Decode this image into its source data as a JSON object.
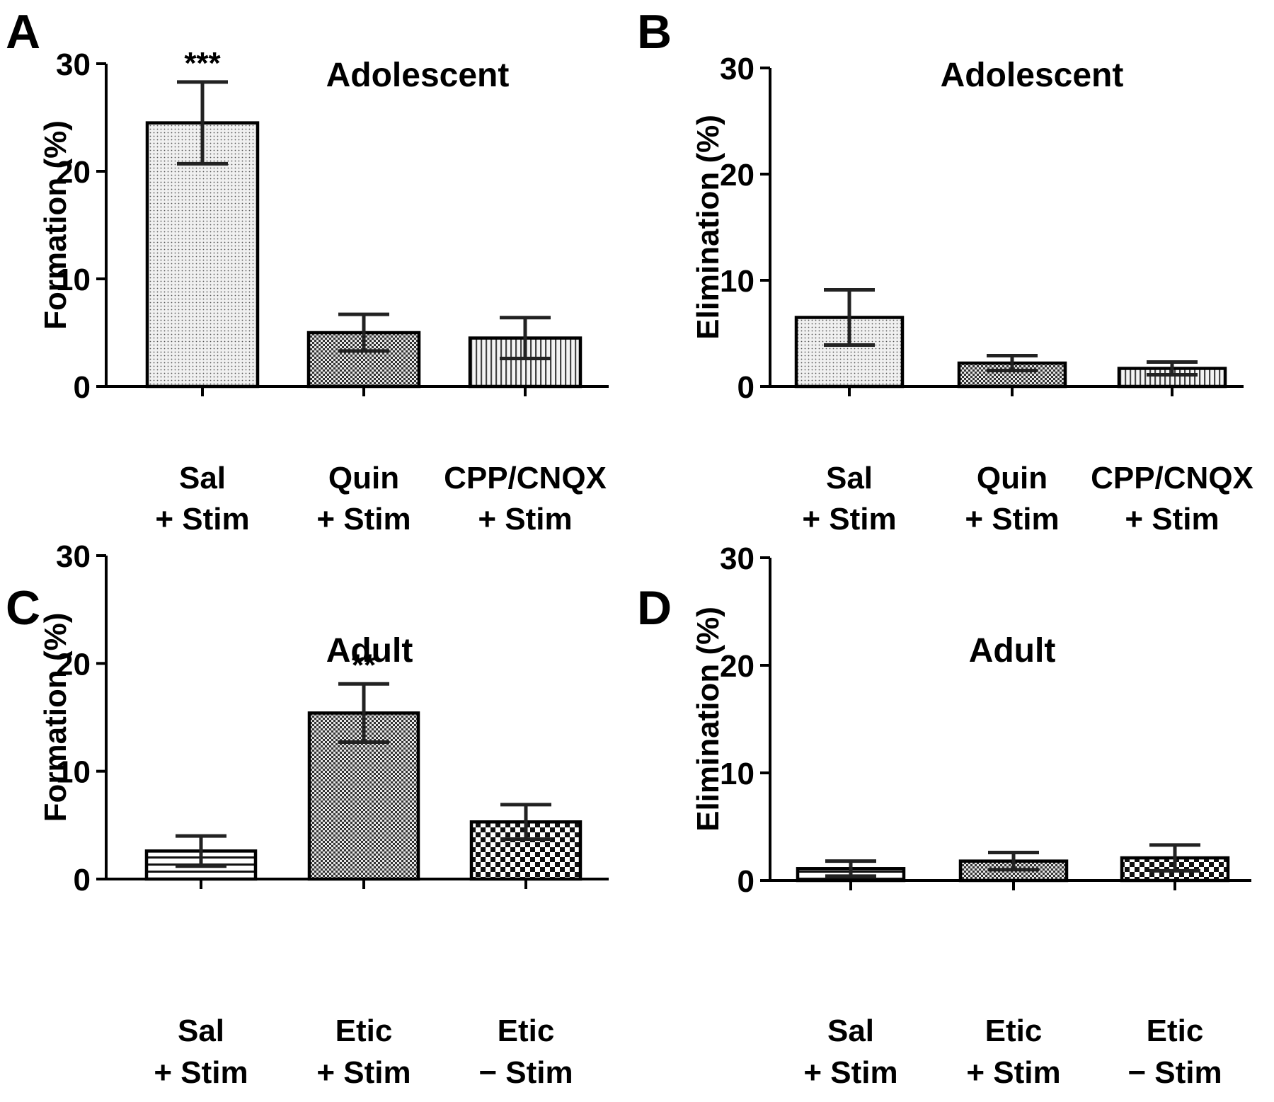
{
  "chart_data": [
    {
      "panel": "A",
      "type": "bar",
      "title": "Adolescent",
      "ylabel": "Formation (%)",
      "xlabel": "",
      "ylim": [
        0,
        30
      ],
      "yticks": [
        "0",
        "10",
        "20",
        "30"
      ],
      "categories": [
        [
          "Sal",
          "+ Stim"
        ],
        [
          "Quin",
          "+ Stim"
        ],
        [
          "CPP/CNQX",
          "+ Stim"
        ]
      ],
      "values": [
        24.5,
        5.0,
        4.5
      ],
      "errors": [
        3.8,
        1.7,
        1.9
      ],
      "significance": [
        "***",
        "",
        ""
      ],
      "patterns": [
        "dots",
        "checker",
        "vlines"
      ]
    },
    {
      "panel": "B",
      "type": "bar",
      "title": "Adolescent",
      "ylabel": "Elimination (%)",
      "xlabel": "",
      "ylim": [
        0,
        30
      ],
      "yticks": [
        "0",
        "10",
        "20",
        "30"
      ],
      "categories": [
        [
          "Sal",
          "+ Stim"
        ],
        [
          "Quin",
          "+ Stim"
        ],
        [
          "CPP/CNQX",
          "+ Stim"
        ]
      ],
      "values": [
        6.5,
        2.2,
        1.7
      ],
      "errors": [
        2.6,
        0.7,
        0.6
      ],
      "significance": [
        "",
        "",
        ""
      ],
      "patterns": [
        "dots",
        "checker",
        "vlines"
      ]
    },
    {
      "panel": "C",
      "type": "bar",
      "title": "Adult",
      "ylabel": "Formation (%)",
      "xlabel": "",
      "ylim": [
        0,
        30
      ],
      "yticks": [
        "0",
        "10",
        "20",
        "30"
      ],
      "categories": [
        [
          "Sal",
          "+ Stim"
        ],
        [
          "Etic",
          "+ Stim"
        ],
        [
          "Etic",
          "− Stim"
        ]
      ],
      "values": [
        2.6,
        15.4,
        5.3
      ],
      "errors": [
        1.4,
        2.7,
        1.6
      ],
      "significance": [
        "",
        "**",
        ""
      ],
      "patterns": [
        "hlines",
        "checker",
        "bigchecker"
      ]
    },
    {
      "panel": "D",
      "type": "bar",
      "title": "Adult",
      "ylabel": "Elimination (%)",
      "xlabel": "",
      "ylim": [
        0,
        30
      ],
      "yticks": [
        "0",
        "10",
        "20",
        "30"
      ],
      "categories": [
        [
          "Sal",
          "+ Stim"
        ],
        [
          "Etic",
          "+ Stim"
        ],
        [
          "Etic",
          "− Stim"
        ]
      ],
      "values": [
        1.1,
        1.8,
        2.1
      ],
      "errors": [
        0.7,
        0.8,
        1.2
      ],
      "significance": [
        "",
        "",
        ""
      ],
      "patterns": [
        "hlines",
        "checker",
        "bigchecker"
      ]
    }
  ]
}
